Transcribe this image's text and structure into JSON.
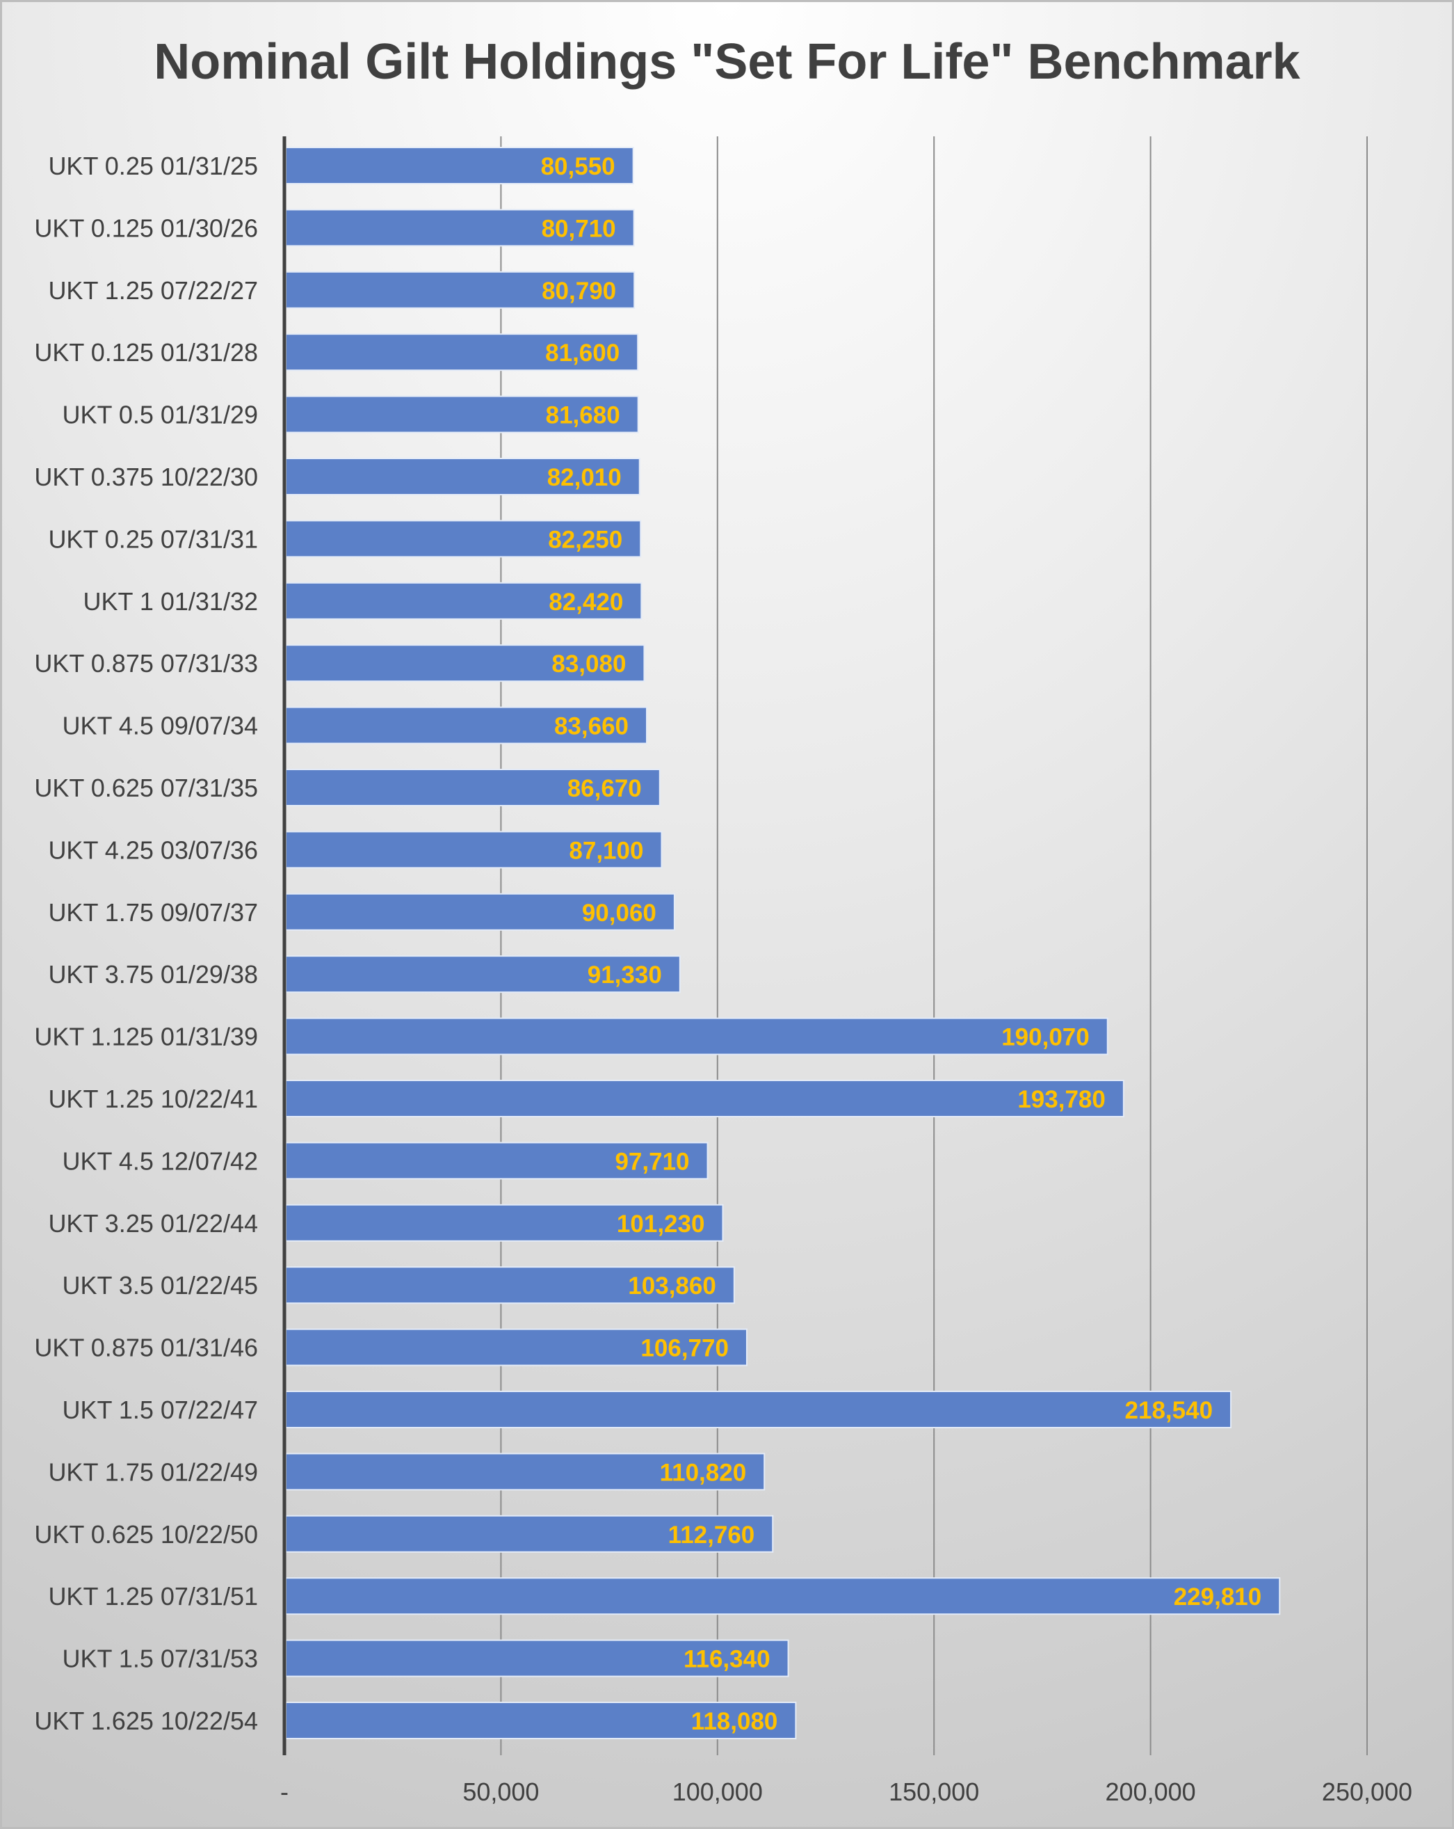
{
  "chart_data": {
    "type": "bar",
    "orientation": "horizontal",
    "title": "Nominal Gilt Holdings \"Set For Life\" Benchmark",
    "xlabel": "",
    "ylabel": "",
    "xlim": [
      0,
      250000
    ],
    "x_ticks": [
      {
        "value": 0,
        "label": "-"
      },
      {
        "value": 50000,
        "label": "50,000"
      },
      {
        "value": 100000,
        "label": "100,000"
      },
      {
        "value": 150000,
        "label": "150,000"
      },
      {
        "value": 200000,
        "label": "200,000"
      },
      {
        "value": 250000,
        "label": "250,000"
      }
    ],
    "grid": true,
    "legend": "none",
    "bar_color": "#5b80c8",
    "label_color": "#ffc000",
    "categories": [
      "UKT 0.25 01/31/25",
      "UKT 0.125 01/30/26",
      "UKT 1.25 07/22/27",
      "UKT 0.125 01/31/28",
      "UKT 0.5 01/31/29",
      "UKT 0.375 10/22/30",
      "UKT 0.25 07/31/31",
      "UKT 1 01/31/32",
      "UKT 0.875 07/31/33",
      "UKT 4.5 09/07/34",
      "UKT 0.625 07/31/35",
      "UKT 4.25 03/07/36",
      "UKT 1.75 09/07/37",
      "UKT 3.75 01/29/38",
      "UKT 1.125 01/31/39",
      "UKT 1.25 10/22/41",
      "UKT 4.5 12/07/42",
      "UKT 3.25 01/22/44",
      "UKT 3.5 01/22/45",
      "UKT 0.875 01/31/46",
      "UKT 1.5 07/22/47",
      "UKT 1.75 01/22/49",
      "UKT 0.625 10/22/50",
      "UKT 1.25 07/31/51",
      "UKT 1.5 07/31/53",
      "UKT 1.625 10/22/54"
    ],
    "values": [
      80550,
      80710,
      80790,
      81600,
      81680,
      82010,
      82250,
      82420,
      83080,
      83660,
      86670,
      87100,
      90060,
      91330,
      190070,
      193780,
      97710,
      101230,
      103860,
      106770,
      218540,
      110820,
      112760,
      229810,
      116340,
      118080
    ],
    "value_labels": [
      "80,550",
      "80,710",
      "80,790",
      "81,600",
      "81,680",
      "82,010",
      "82,250",
      "82,420",
      "83,080",
      "83,660",
      "86,670",
      "87,100",
      "90,060",
      "91,330",
      "190,070",
      "193,780",
      "97,710",
      "101,230",
      "103,860",
      "106,770",
      "218,540",
      "110,820",
      "112,760",
      "229,810",
      "116,340",
      "118,080"
    ]
  }
}
